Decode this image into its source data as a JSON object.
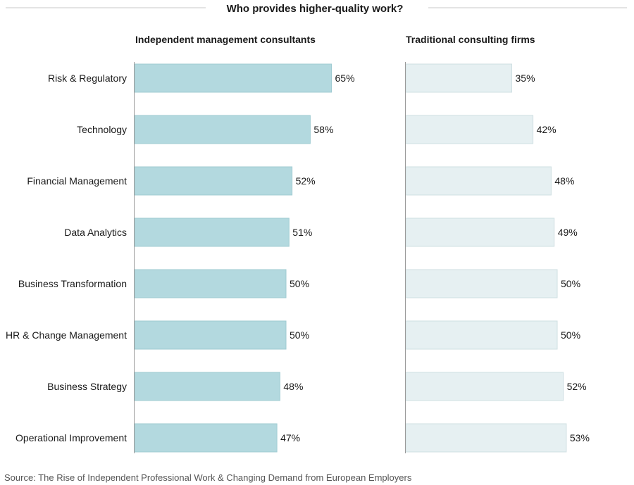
{
  "chart_data": {
    "type": "bar",
    "orientation": "horizontal",
    "title": "Who provides higher-quality work?",
    "categories": [
      "Risk & Regulatory",
      "Technology",
      "Financial Management",
      "Data Analytics",
      "Business Transformation",
      "HR & Change Management",
      "Business Strategy",
      "Operational Improvement"
    ],
    "series": [
      {
        "name": "Independent management consultants",
        "values": [
          65,
          58,
          52,
          51,
          50,
          50,
          48,
          47
        ],
        "labels": [
          "65%",
          "58%",
          "52%",
          "51%",
          "50%",
          "50%",
          "48%",
          "47%"
        ],
        "color": "#b3d9df"
      },
      {
        "name": "Traditional consulting firms",
        "values": [
          35,
          42,
          48,
          49,
          50,
          50,
          52,
          53
        ],
        "labels": [
          "35%",
          "42%",
          "48%",
          "49%",
          "50%",
          "50%",
          "52%",
          "53%"
        ],
        "color": "#e6f0f2"
      }
    ],
    "xlim": [
      0,
      100
    ],
    "unit": "%",
    "grid": false,
    "legend": "panel titles above each group"
  },
  "source": "Source: The Rise of Independent Professional Work & Changing Demand from European Employers"
}
